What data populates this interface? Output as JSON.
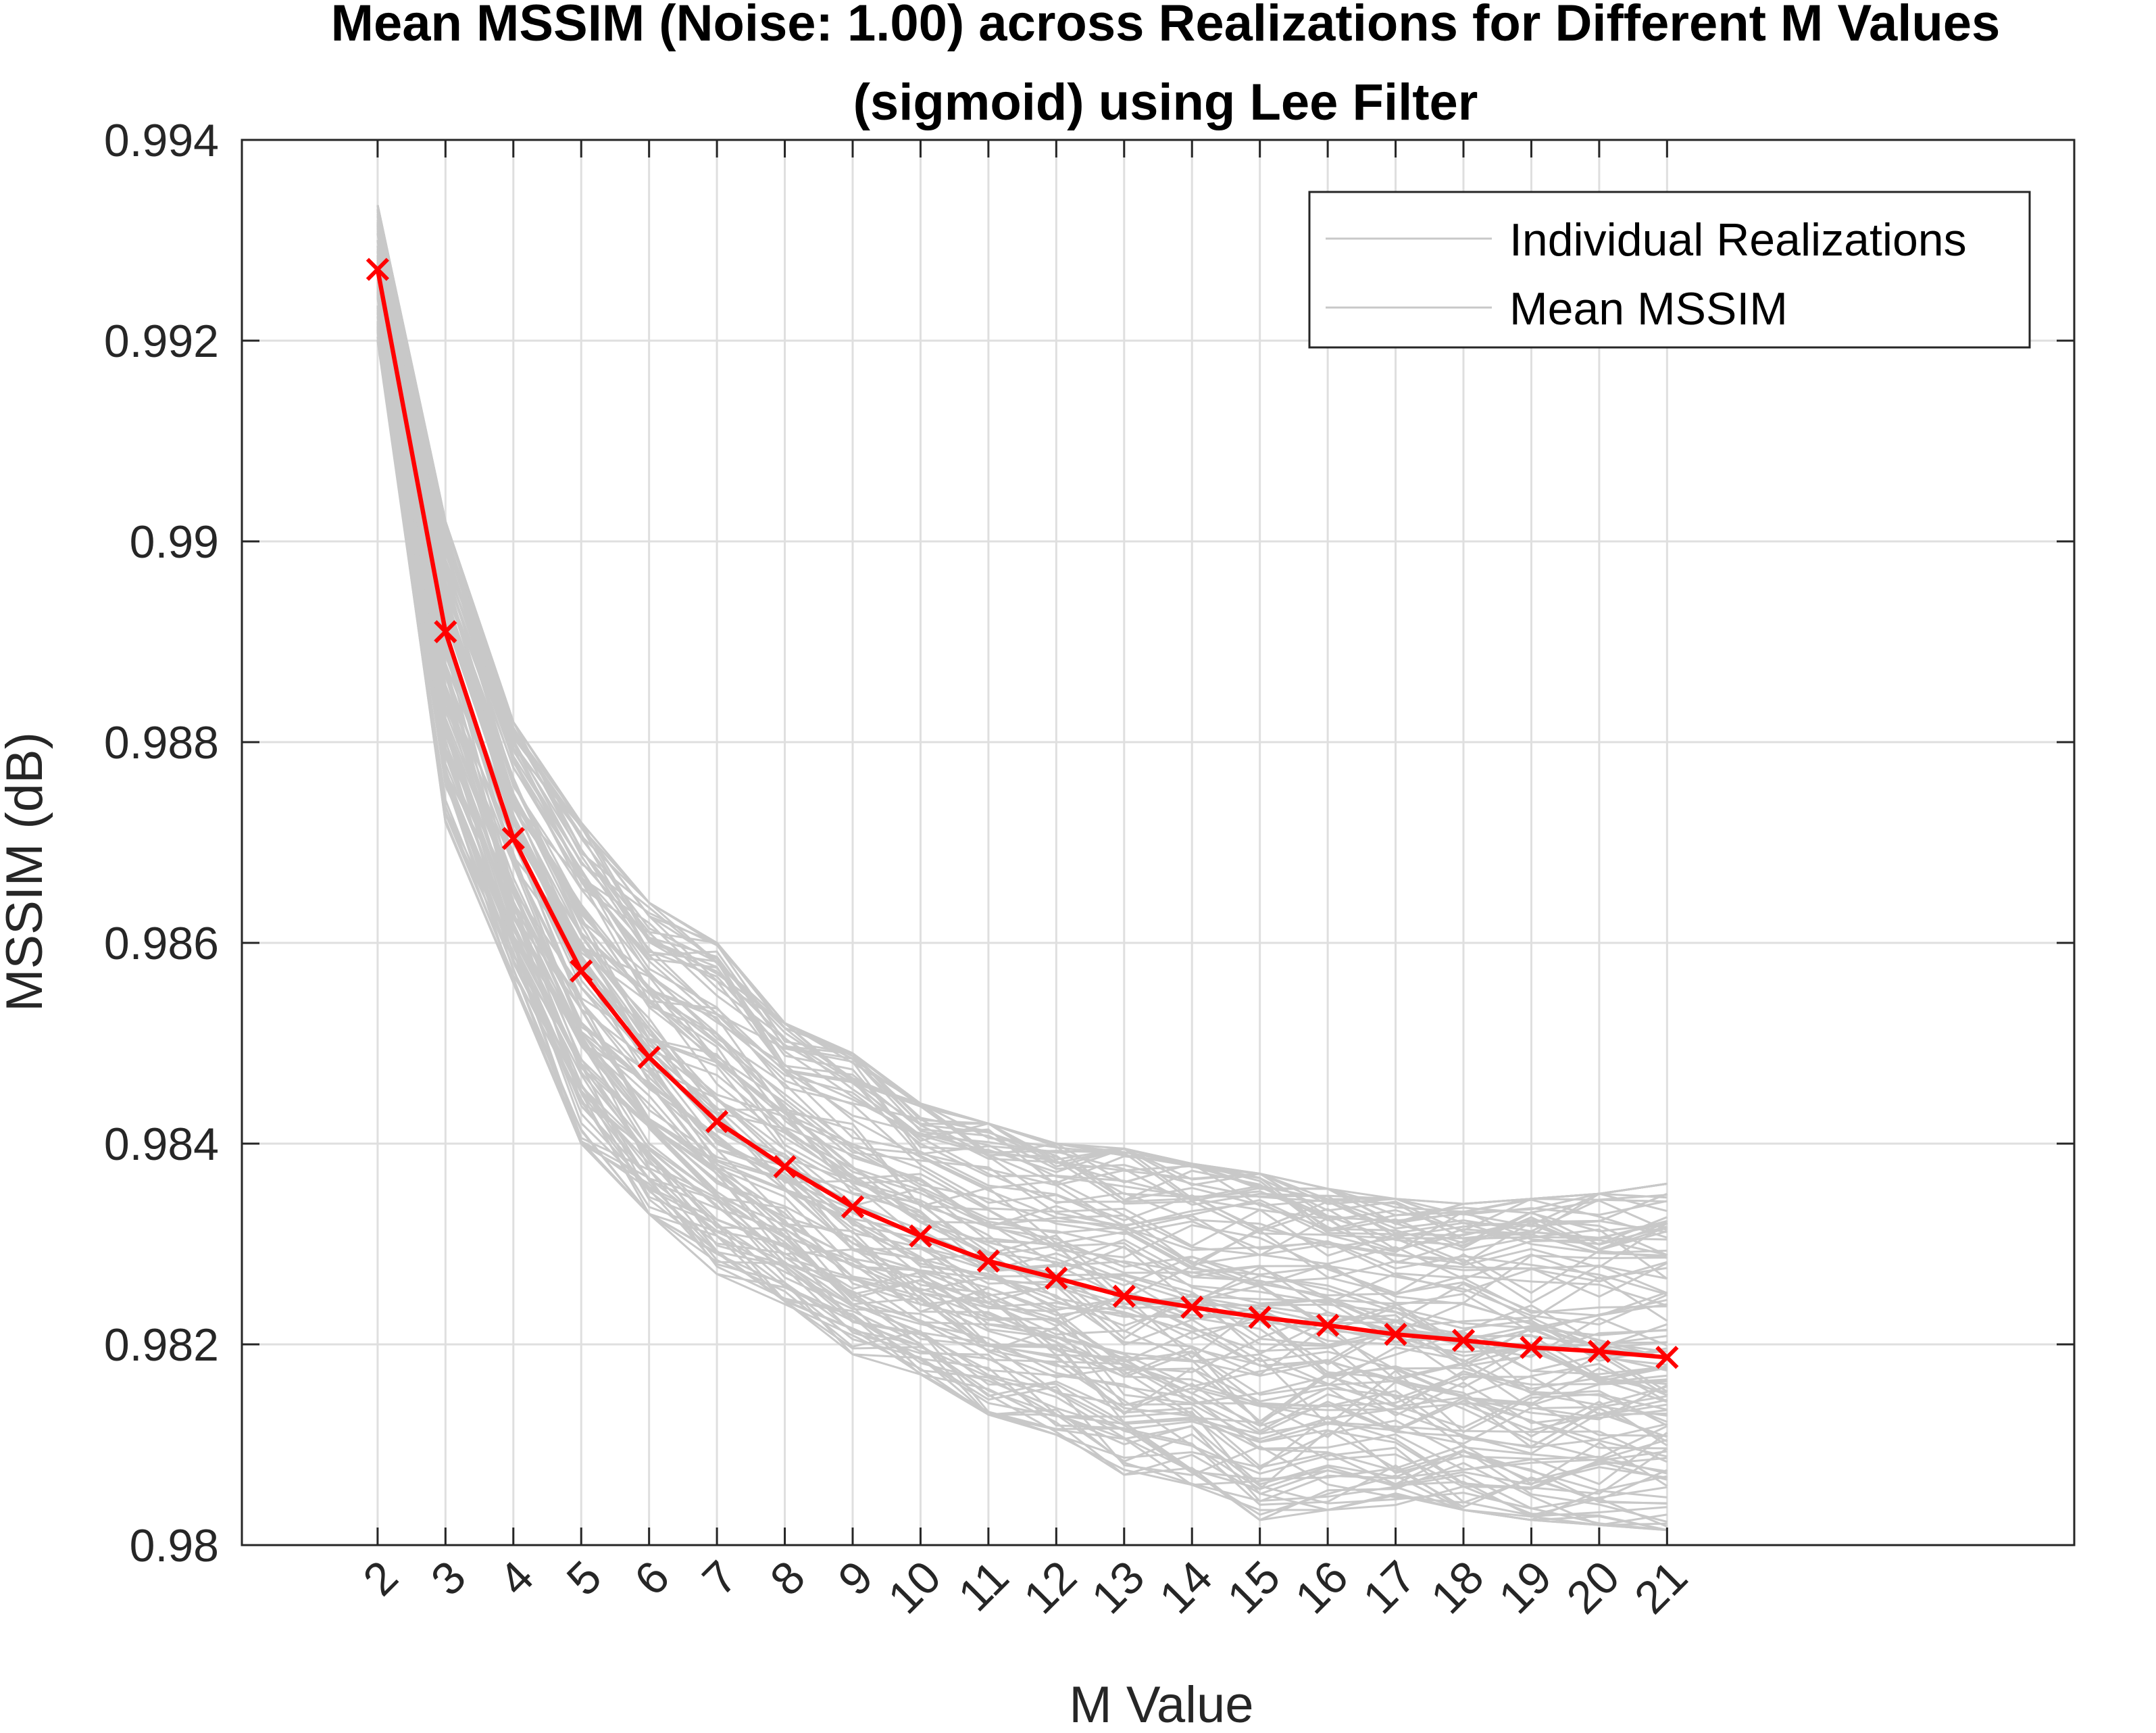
{
  "chart_data": {
    "type": "line",
    "title_line1": "Mean MSSIM (Noise: 1.00) across Realizations for Different M Values",
    "title_line2": "(sigmoid) using Lee Filter",
    "xlabel": "M Value",
    "ylabel": "MSSIM (dB)",
    "xlim": [
      0,
      27
    ],
    "ylim": [
      0.98,
      0.994
    ],
    "x": [
      2,
      3,
      4,
      5,
      6,
      7,
      8,
      9,
      10,
      11,
      12,
      13,
      14,
      15,
      16,
      17,
      18,
      19,
      20,
      21
    ],
    "x_tick_labels": [
      "2",
      "3",
      "4",
      "5",
      "6",
      "7",
      "8",
      "9",
      "10",
      "11",
      "12",
      "13",
      "14",
      "15",
      "16",
      "17",
      "18",
      "19",
      "20",
      "21"
    ],
    "y_ticks": [
      0.98,
      0.982,
      0.984,
      0.986,
      0.988,
      0.99,
      0.992,
      0.994
    ],
    "y_tick_labels": [
      "0.98",
      "0.982",
      "0.984",
      "0.986",
      "0.988",
      "0.99",
      "0.992",
      "0.994"
    ],
    "grid": true,
    "legend_position": "top-right",
    "series": [
      {
        "name": "Mean MSSIM",
        "color": "#ff0000",
        "marker": "x",
        "values": [
          0.99271,
          0.9891,
          0.98704,
          0.98572,
          0.98486,
          0.98422,
          0.98377,
          0.98337,
          0.98308,
          0.98283,
          0.98266,
          0.98248,
          0.98237,
          0.98227,
          0.98219,
          0.9821,
          0.98204,
          0.98197,
          0.98193,
          0.98187
        ]
      }
    ],
    "realizations": {
      "name": "Individual Realizations",
      "color": "#c8c8c8",
      "count": 120,
      "upper_envelope": [
        0.99335,
        0.9902,
        0.9882,
        0.9872,
        0.9864,
        0.986,
        0.9852,
        0.9849,
        0.9844,
        0.9842,
        0.984,
        0.98395,
        0.9838,
        0.9837,
        0.98355,
        0.98345,
        0.9834,
        0.98345,
        0.9835,
        0.9836
      ],
      "lower_envelope": [
        0.992,
        0.9872,
        0.9856,
        0.984,
        0.9833,
        0.9827,
        0.9824,
        0.9819,
        0.9817,
        0.9813,
        0.9811,
        0.9807,
        0.9806,
        0.98025,
        0.98035,
        0.9804,
        0.98035,
        0.98025,
        0.9802,
        0.98015
      ]
    },
    "legend": [
      "Individual Realizations",
      "Mean MSSIM"
    ]
  }
}
